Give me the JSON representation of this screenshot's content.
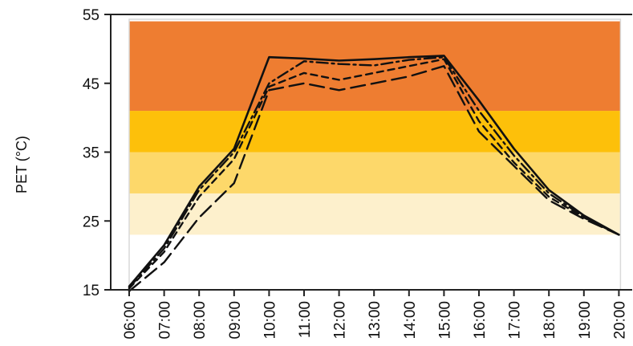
{
  "chart_data": {
    "type": "line",
    "title": "",
    "xlabel": "",
    "ylabel": "PET (°C)",
    "ylim": [
      15,
      55
    ],
    "yticks": [
      15,
      25,
      35,
      45,
      55
    ],
    "x": [
      "06:00",
      "07:00",
      "08:00",
      "09:00",
      "10:00",
      "11:00",
      "12:00",
      "13:00",
      "14:00",
      "15:00",
      "16:00",
      "17:00",
      "18:00",
      "19:00",
      "20:00"
    ],
    "grid": false,
    "legend": "none",
    "bands": [
      {
        "from": 23,
        "to": 29,
        "color": "#FDF0CC"
      },
      {
        "from": 29,
        "to": 35,
        "color": "#FDD86A"
      },
      {
        "from": 35,
        "to": 41,
        "color": "#FDC00A"
      },
      {
        "from": 41,
        "to": 54,
        "color": "#EE7D31"
      }
    ],
    "series": [
      {
        "style": "solid",
        "values": [
          15.5,
          21.5,
          30.0,
          35.5,
          48.8,
          48.6,
          48.3,
          48.5,
          48.8,
          49.0,
          42.5,
          35.5,
          29.5,
          25.8,
          23.0
        ]
      },
      {
        "style": "dash-dot",
        "values": [
          15.3,
          21.0,
          29.5,
          35.0,
          45.0,
          48.2,
          47.8,
          47.6,
          48.4,
          48.8,
          41.0,
          34.5,
          29.0,
          25.6,
          23.0
        ]
      },
      {
        "style": "short-dash",
        "values": [
          15.2,
          20.5,
          28.5,
          34.0,
          44.5,
          46.5,
          45.5,
          46.5,
          47.5,
          48.5,
          39.5,
          33.5,
          28.5,
          25.5,
          23.0
        ]
      },
      {
        "style": "long-dash",
        "values": [
          14.8,
          19.0,
          25.5,
          30.5,
          44.0,
          45.0,
          44.0,
          45.0,
          46.0,
          47.5,
          38.0,
          33.0,
          28.0,
          25.3,
          23.0
        ]
      }
    ],
    "colors": {
      "line": "#111111",
      "axis": "#222222",
      "plot_border": "#d9d9d9"
    }
  }
}
